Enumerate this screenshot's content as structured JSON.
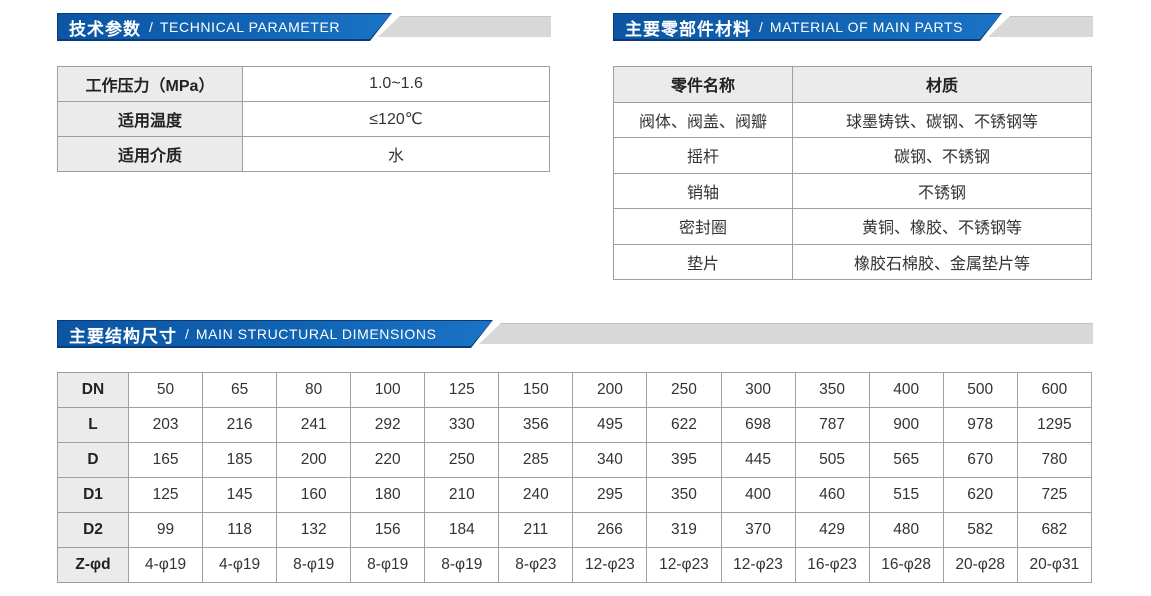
{
  "colors": {
    "banner_blue": "#1164b4",
    "banner_blue_dark_edge": "#093c77",
    "banner_gray_strip": "#d8d8d8",
    "table_border": "#9f9f9f",
    "header_cell_bg": "#ebebeb",
    "text": "#333333"
  },
  "technical_parameters": {
    "title_zh": "技术参数",
    "title_sep": "/",
    "title_en": "TECHNICAL PARAMETER",
    "rows": [
      [
        "工作压力（MPa）",
        "1.0~1.6"
      ],
      [
        "适用温度",
        "≤120℃"
      ],
      [
        "适用介质",
        "水"
      ]
    ]
  },
  "materials": {
    "title_zh": "主要零部件材料",
    "title_sep": "/",
    "title_en": "MATERIAL OF MAIN PARTS",
    "header": [
      "零件名称",
      "材质"
    ],
    "rows": [
      [
        "阀体、阀盖、阀瓣",
        "球墨铸铁、碳钢、不锈钢等"
      ],
      [
        "摇杆",
        "碳钢、不锈钢"
      ],
      [
        "销轴",
        "不锈钢"
      ],
      [
        "密封圈",
        "黄铜、橡胶、不锈钢等"
      ],
      [
        "垫片",
        "橡胶石棉胶、金属垫片等"
      ]
    ]
  },
  "dimensions": {
    "title_zh": "主要结构尺寸",
    "title_sep": "/",
    "title_en": "MAIN STRUCTURAL DIMENSIONS",
    "rows": [
      [
        "DN",
        "50",
        "65",
        "80",
        "100",
        "125",
        "150",
        "200",
        "250",
        "300",
        "350",
        "400",
        "500",
        "600"
      ],
      [
        "L",
        "203",
        "216",
        "241",
        "292",
        "330",
        "356",
        "495",
        "622",
        "698",
        "787",
        "900",
        "978",
        "1295"
      ],
      [
        "D",
        "165",
        "185",
        "200",
        "220",
        "250",
        "285",
        "340",
        "395",
        "445",
        "505",
        "565",
        "670",
        "780"
      ],
      [
        "D1",
        "125",
        "145",
        "160",
        "180",
        "210",
        "240",
        "295",
        "350",
        "400",
        "460",
        "515",
        "620",
        "725"
      ],
      [
        "D2",
        "99",
        "118",
        "132",
        "156",
        "184",
        "211",
        "266",
        "319",
        "370",
        "429",
        "480",
        "582",
        "682"
      ],
      [
        "Z-φd",
        "4-φ19",
        "4-φ19",
        "8-φ19",
        "8-φ19",
        "8-φ19",
        "8-φ23",
        "12-φ23",
        "12-φ23",
        "12-φ23",
        "16-φ23",
        "16-φ28",
        "20-φ28",
        "20-φ31"
      ]
    ]
  }
}
